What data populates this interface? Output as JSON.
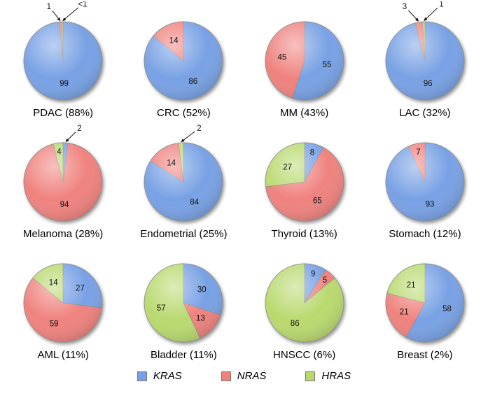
{
  "legend": {
    "items": [
      {
        "label": "KRAS"
      },
      {
        "label": "NRAS"
      },
      {
        "label": "HRAS"
      }
    ]
  },
  "chart_data": {
    "type": "pie",
    "genes": [
      "KRAS",
      "NRAS",
      "HRAS"
    ],
    "colors": {
      "KRAS": "#78A1E4",
      "NRAS": "#EF827E",
      "HRAS": "#B9D96F"
    },
    "charts": [
      {
        "title": "PDAC (88%)",
        "slices": [
          {
            "gene": "KRAS",
            "value": 99,
            "label": "99"
          },
          {
            "gene": "NRAS",
            "value": 1,
            "label": "1",
            "callout": [
              -0.36,
              -1.32
            ]
          },
          {
            "gene": "HRAS",
            "value": 0.5,
            "label": "<1",
            "callout": [
              0.5,
              -1.38
            ]
          }
        ]
      },
      {
        "title": "CRC (52%)",
        "slices": [
          {
            "gene": "KRAS",
            "value": 86,
            "label": "86"
          },
          {
            "gene": "NRAS",
            "value": 14,
            "label": "14"
          }
        ]
      },
      {
        "title": "MM (43%)",
        "slices": [
          {
            "gene": "KRAS",
            "value": 55,
            "label": "55"
          },
          {
            "gene": "NRAS",
            "value": 45,
            "label": "45"
          }
        ]
      },
      {
        "title": "LAC (32%)",
        "slices": [
          {
            "gene": "KRAS",
            "value": 96,
            "label": "96"
          },
          {
            "gene": "NRAS",
            "value": 3,
            "label": "3",
            "callout": [
              -0.52,
              -1.32
            ]
          },
          {
            "gene": "HRAS",
            "value": 1,
            "label": "1",
            "callout": [
              0.42,
              -1.38
            ]
          }
        ]
      },
      {
        "title": "Melanoma (28%)",
        "slices": [
          {
            "gene": "KRAS",
            "value": 2,
            "label": "2",
            "callout": [
              0.42,
              -1.3
            ]
          },
          {
            "gene": "NRAS",
            "value": 94,
            "label": "94"
          },
          {
            "gene": "HRAS",
            "value": 4,
            "label": "4"
          }
        ]
      },
      {
        "title": "Endometrial (25%)",
        "slices": [
          {
            "gene": "KRAS",
            "value": 84,
            "label": "84"
          },
          {
            "gene": "NRAS",
            "value": 14,
            "label": "14"
          },
          {
            "gene": "HRAS",
            "value": 2,
            "label": "2",
            "callout": [
              0.4,
              -1.3
            ]
          }
        ]
      },
      {
        "title": "Thyroid (13%)",
        "slices": [
          {
            "gene": "KRAS",
            "value": 8,
            "label": "8"
          },
          {
            "gene": "NRAS",
            "value": 65,
            "label": "65"
          },
          {
            "gene": "HRAS",
            "value": 27,
            "label": "27"
          }
        ]
      },
      {
        "title": "Stomach (12%)",
        "slices": [
          {
            "gene": "KRAS",
            "value": 93,
            "label": "93"
          },
          {
            "gene": "NRAS",
            "value": 7,
            "label": "7"
          }
        ]
      },
      {
        "title": "AML (11%)",
        "slices": [
          {
            "gene": "KRAS",
            "value": 27,
            "label": "27"
          },
          {
            "gene": "NRAS",
            "value": 59,
            "label": "59"
          },
          {
            "gene": "HRAS",
            "value": 14,
            "label": "14"
          }
        ]
      },
      {
        "title": "Bladder (11%)",
        "slices": [
          {
            "gene": "KRAS",
            "value": 30,
            "label": "30"
          },
          {
            "gene": "NRAS",
            "value": 13,
            "label": "13"
          },
          {
            "gene": "HRAS",
            "value": 57,
            "label": "57"
          }
        ]
      },
      {
        "title": "HNSCC (6%)",
        "slices": [
          {
            "gene": "KRAS",
            "value": 9,
            "label": "9"
          },
          {
            "gene": "NRAS",
            "value": 5,
            "label": "5"
          },
          {
            "gene": "HRAS",
            "value": 86,
            "label": "86"
          }
        ]
      },
      {
        "title": "Breast (2%)",
        "slices": [
          {
            "gene": "KRAS",
            "value": 58,
            "label": "58"
          },
          {
            "gene": "NRAS",
            "value": 21,
            "label": "21"
          },
          {
            "gene": "HRAS",
            "value": 21,
            "label": "21"
          }
        ]
      }
    ]
  }
}
